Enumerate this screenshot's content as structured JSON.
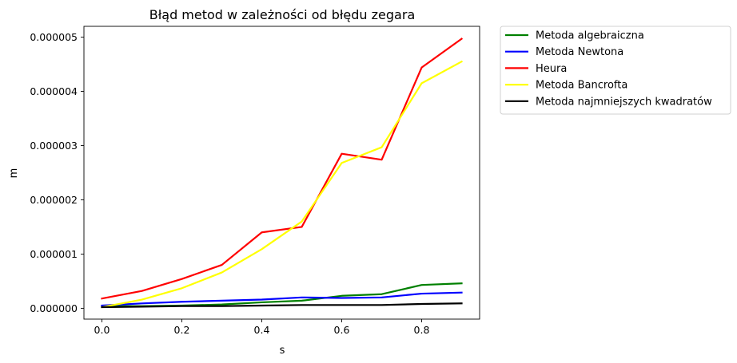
{
  "chart_data": {
    "type": "line",
    "title": "Błąd metod w zależności od błędu zegara",
    "xlabel": "s",
    "ylabel": "m",
    "xlim": [
      -0.045,
      0.945
    ],
    "ylim": [
      -2e-07,
      5.2e-06
    ],
    "x_ticks": [
      0.0,
      0.2,
      0.4,
      0.6,
      0.8
    ],
    "x_tick_labels": [
      "0.0",
      "0.2",
      "0.4",
      "0.6",
      "0.8"
    ],
    "y_ticks": [
      0,
      1e-06,
      2e-06,
      3e-06,
      4e-06,
      5e-06
    ],
    "y_tick_labels": [
      "0.000000",
      "0.000001",
      "0.000002",
      "0.000003",
      "0.000004",
      "0.000005"
    ],
    "grid": false,
    "legend_position": "outside-upper-right",
    "x": [
      0.0,
      0.1,
      0.2,
      0.3,
      0.4,
      0.5,
      0.6,
      0.7,
      0.8,
      0.9
    ],
    "series": [
      {
        "name": "Metoda algebraiczna",
        "color": "#008000",
        "values": [
          4e-08,
          4e-08,
          5e-08,
          7e-08,
          1.1e-07,
          1.4e-07,
          2.3e-07,
          2.6e-07,
          4.3e-07,
          4.6e-07
        ]
      },
      {
        "name": "Metoda Newtona",
        "color": "#0000ff",
        "values": [
          5e-08,
          9e-08,
          1.2e-07,
          1.4e-07,
          1.6e-07,
          2e-07,
          1.9e-07,
          2e-07,
          2.7e-07,
          2.9e-07
        ]
      },
      {
        "name": "Heura",
        "color": "#ff0000",
        "values": [
          1.8e-07,
          3.2e-07,
          5.4e-07,
          8e-07,
          1.4e-06,
          1.5e-06,
          2.85e-06,
          2.74e-06,
          4.44e-06,
          4.97e-06
        ]
      },
      {
        "name": "Metoda Bancrofta",
        "color": "#ffff00",
        "values": [
          2e-08,
          1.6e-07,
          3.7e-07,
          6.6e-07,
          1.09e-06,
          1.6e-06,
          2.68e-06,
          2.97e-06,
          4.15e-06,
          4.55e-06
        ]
      },
      {
        "name": "Metoda najmniejszych kwadratów",
        "color": "#000000",
        "values": [
          2e-08,
          3e-08,
          4e-08,
          4e-08,
          5e-08,
          6e-08,
          6e-08,
          6e-08,
          8e-08,
          9e-08
        ]
      }
    ]
  }
}
